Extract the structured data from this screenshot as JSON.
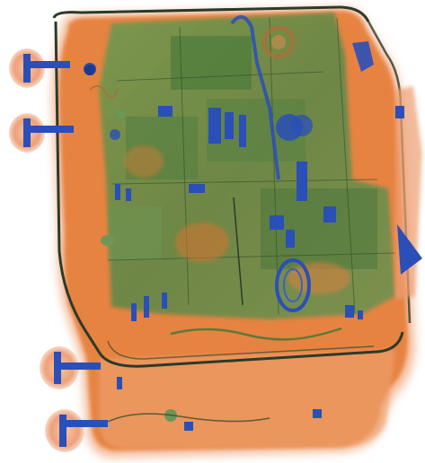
{
  "image": {
    "kind": "x-ray scan of a suitcase with a laptop inside",
    "palette": {
      "background": "#ffffff",
      "organic_light": "#f2b58f",
      "organic": "#e5782f",
      "organic_dark": "#c8561a",
      "mixed_green": "#5d8d4a",
      "mixed_green_dark": "#3e6b34",
      "metal_blue": "#2a4fb8",
      "metal_dark": "#1c3a8e",
      "outline": "#2b3a2a"
    },
    "objects": [
      "suitcase-shell",
      "laptop-board",
      "wheel-assembly",
      "side-handle",
      "cable",
      "coin-cell"
    ]
  }
}
